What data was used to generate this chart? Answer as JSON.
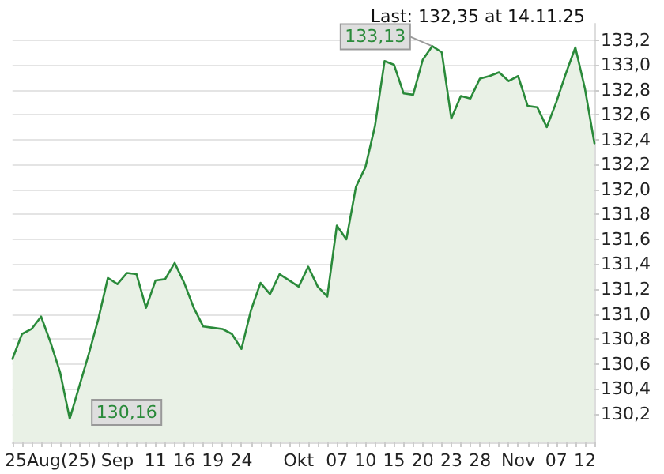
{
  "chart_data": {
    "type": "area",
    "title": "Last: 132,35 at 14.11.25",
    "categories": [
      null,
      null,
      null,
      null,
      "25Aug(25)",
      null,
      null,
      null,
      null,
      null,
      null,
      "Sep",
      null,
      null,
      null,
      "11",
      null,
      null,
      "16",
      null,
      null,
      "19",
      null,
      null,
      "24",
      null,
      null,
      null,
      null,
      null,
      "Okt",
      null,
      null,
      null,
      "07",
      null,
      null,
      "10",
      null,
      null,
      "15",
      null,
      null,
      "20",
      null,
      null,
      "23",
      null,
      null,
      "28",
      null,
      null,
      null,
      "Nov",
      null,
      null,
      null,
      "07",
      null,
      null,
      "12",
      null
    ],
    "series": [
      {
        "color": "#2a8a3a",
        "values": [
          130.64,
          130.84,
          130.88,
          130.98,
          130.77,
          130.53,
          130.16,
          130.42,
          130.68,
          130.96,
          131.29,
          131.24,
          131.33,
          131.32,
          131.05,
          131.27,
          131.28,
          131.41,
          131.25,
          131.05,
          130.9,
          130.89,
          130.88,
          130.84,
          130.72,
          131.03,
          131.25,
          131.16,
          131.32,
          131.27,
          131.22,
          131.38,
          131.22,
          131.14,
          131.71,
          131.6,
          132.02,
          132.18,
          132.51,
          133.03,
          133.0,
          132.77,
          132.76,
          133.04,
          133.15,
          133.1,
          132.57,
          132.75,
          132.73,
          132.89,
          132.91,
          132.94,
          132.87,
          132.91,
          132.67,
          132.66,
          132.5,
          132.7,
          132.93,
          133.14,
          132.81,
          132.37
        ]
      }
    ],
    "ylim": [
      129.97,
      133.33
    ],
    "yticks": [
      {
        "value": 130.2,
        "label": "130,2"
      },
      {
        "value": 130.4,
        "label": "130,4"
      },
      {
        "value": 130.6,
        "label": "130,6"
      },
      {
        "value": 130.8,
        "label": "130,8"
      },
      {
        "value": 131.0,
        "label": "131,0"
      },
      {
        "value": 131.2,
        "label": "131,2"
      },
      {
        "value": 131.4,
        "label": "131,4"
      },
      {
        "value": 131.6,
        "label": "131,6"
      },
      {
        "value": 131.8,
        "label": "131,8"
      },
      {
        "value": 132.0,
        "label": "132,0"
      },
      {
        "value": 132.2,
        "label": "132,2"
      },
      {
        "value": 132.4,
        "label": "132,4"
      },
      {
        "value": 132.6,
        "label": "132,6"
      },
      {
        "value": 132.8,
        "label": "132,8"
      },
      {
        "value": 133.0,
        "label": "133,0"
      },
      {
        "value": 133.2,
        "label": "133,2"
      }
    ],
    "annotations": [
      "133,13",
      "130,16"
    ],
    "grid": "y",
    "marker": "none",
    "line_style": "solid"
  }
}
